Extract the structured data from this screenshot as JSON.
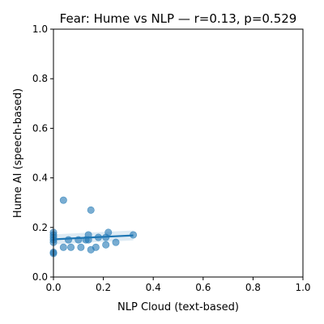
{
  "chart_data": {
    "type": "scatter",
    "title": "Fear: Hume vs NLP — r=0.13, p=0.529",
    "xlabel": "NLP Cloud (text-based)",
    "ylabel": "Hume AI (speech-based)",
    "xlim": [
      0.0,
      1.0
    ],
    "ylim": [
      0.0,
      1.0
    ],
    "xticks": [
      "0.0",
      "0.2",
      "0.4",
      "0.6",
      "0.8",
      "1.0"
    ],
    "yticks": [
      "0.0",
      "0.2",
      "0.4",
      "0.6",
      "0.8",
      "1.0"
    ],
    "grid": false,
    "point_color": "#1f77b4",
    "line_color": "#1f77b4",
    "points": [
      {
        "x": 0.0,
        "y": 0.18
      },
      {
        "x": 0.0,
        "y": 0.17
      },
      {
        "x": 0.0,
        "y": 0.16
      },
      {
        "x": 0.0,
        "y": 0.15
      },
      {
        "x": 0.0,
        "y": 0.14
      },
      {
        "x": 0.0,
        "y": 0.1
      },
      {
        "x": 0.0,
        "y": 0.095
      },
      {
        "x": 0.04,
        "y": 0.31
      },
      {
        "x": 0.04,
        "y": 0.12
      },
      {
        "x": 0.06,
        "y": 0.15
      },
      {
        "x": 0.07,
        "y": 0.12
      },
      {
        "x": 0.1,
        "y": 0.15
      },
      {
        "x": 0.11,
        "y": 0.12
      },
      {
        "x": 0.13,
        "y": 0.15
      },
      {
        "x": 0.14,
        "y": 0.17
      },
      {
        "x": 0.14,
        "y": 0.15
      },
      {
        "x": 0.15,
        "y": 0.27
      },
      {
        "x": 0.15,
        "y": 0.11
      },
      {
        "x": 0.17,
        "y": 0.12
      },
      {
        "x": 0.18,
        "y": 0.16
      },
      {
        "x": 0.21,
        "y": 0.16
      },
      {
        "x": 0.21,
        "y": 0.13
      },
      {
        "x": 0.22,
        "y": 0.18
      },
      {
        "x": 0.25,
        "y": 0.14
      },
      {
        "x": 0.32,
        "y": 0.17
      }
    ],
    "regression": {
      "x": [
        0.0,
        0.32
      ],
      "y": [
        0.152,
        0.168
      ],
      "ci_upper": [
        0.172,
        0.188
      ],
      "ci_lower": [
        0.132,
        0.148
      ]
    }
  }
}
